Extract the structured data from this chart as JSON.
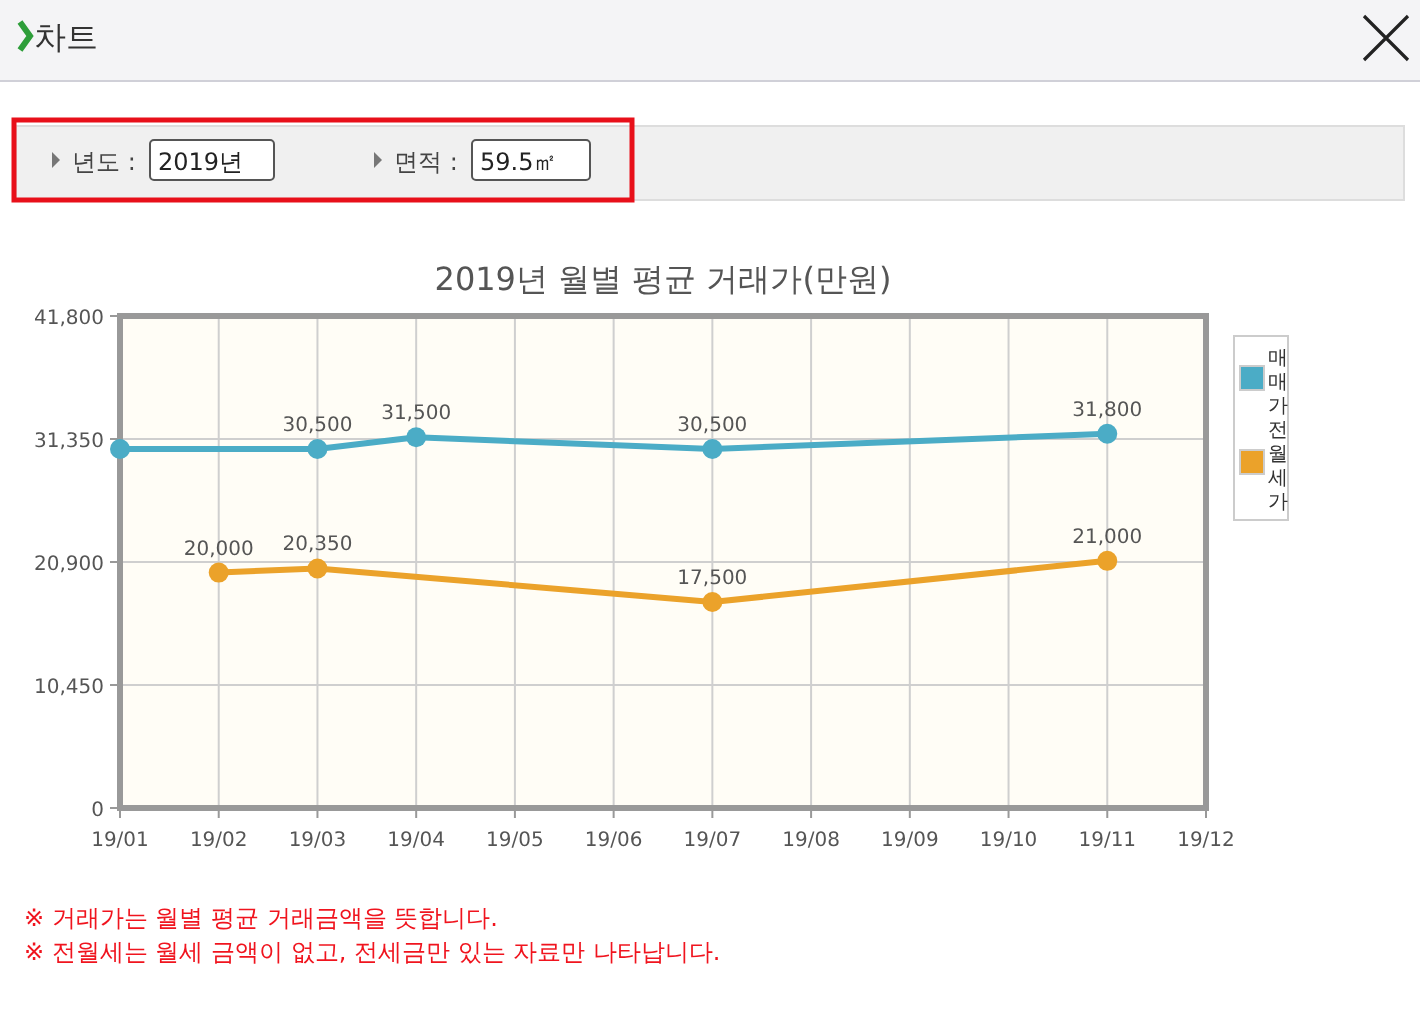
{
  "chart_data": {
    "type": "line",
    "title": "2019년 월별 평균 거래가(만원)",
    "categories": [
      "19/01",
      "19/02",
      "19/03",
      "19/04",
      "19/05",
      "19/06",
      "19/07",
      "19/08",
      "19/09",
      "19/10",
      "19/11",
      "19/12"
    ],
    "series": [
      {
        "name": "매매가",
        "color": "#4bacc6",
        "values": [
          30500,
          null,
          30500,
          31500,
          null,
          null,
          30500,
          null,
          null,
          null,
          31800,
          null
        ],
        "value_labels": [
          null,
          null,
          "30,500",
          "31,500",
          null,
          null,
          "30,500",
          null,
          null,
          null,
          "31,800",
          null
        ]
      },
      {
        "name": "전월세가",
        "color": "#eba22a",
        "values": [
          null,
          20000,
          20350,
          null,
          null,
          null,
          17500,
          null,
          null,
          null,
          21000,
          null
        ],
        "value_labels": [
          null,
          "20,000",
          "20,350",
          null,
          null,
          null,
          "17,500",
          null,
          null,
          null,
          "21,000",
          null
        ]
      }
    ],
    "ylim": [
      0,
      41800
    ],
    "yticks": [
      0,
      {
        "value": 10450,
        "label": "10,450"
      },
      {
        "value": 20900,
        "label": "20,900"
      },
      {
        "value": 31350,
        "label": "31,350"
      },
      {
        "value": 41800,
        "label": "41,800"
      }
    ],
    "grid": true,
    "legend": "right",
    "marker": "circle",
    "line_style": "solid",
    "annotations": [
      "차트",
      "년도 :",
      "2019년",
      "면적 :",
      "59.5㎡",
      "※ 거래가는 월별 평균 거래금액을 뜻합니다.",
      "※ 전월세는 월세 금액이 없고, 전세금만 있는 자료만 나타납니다."
    ]
  }
}
